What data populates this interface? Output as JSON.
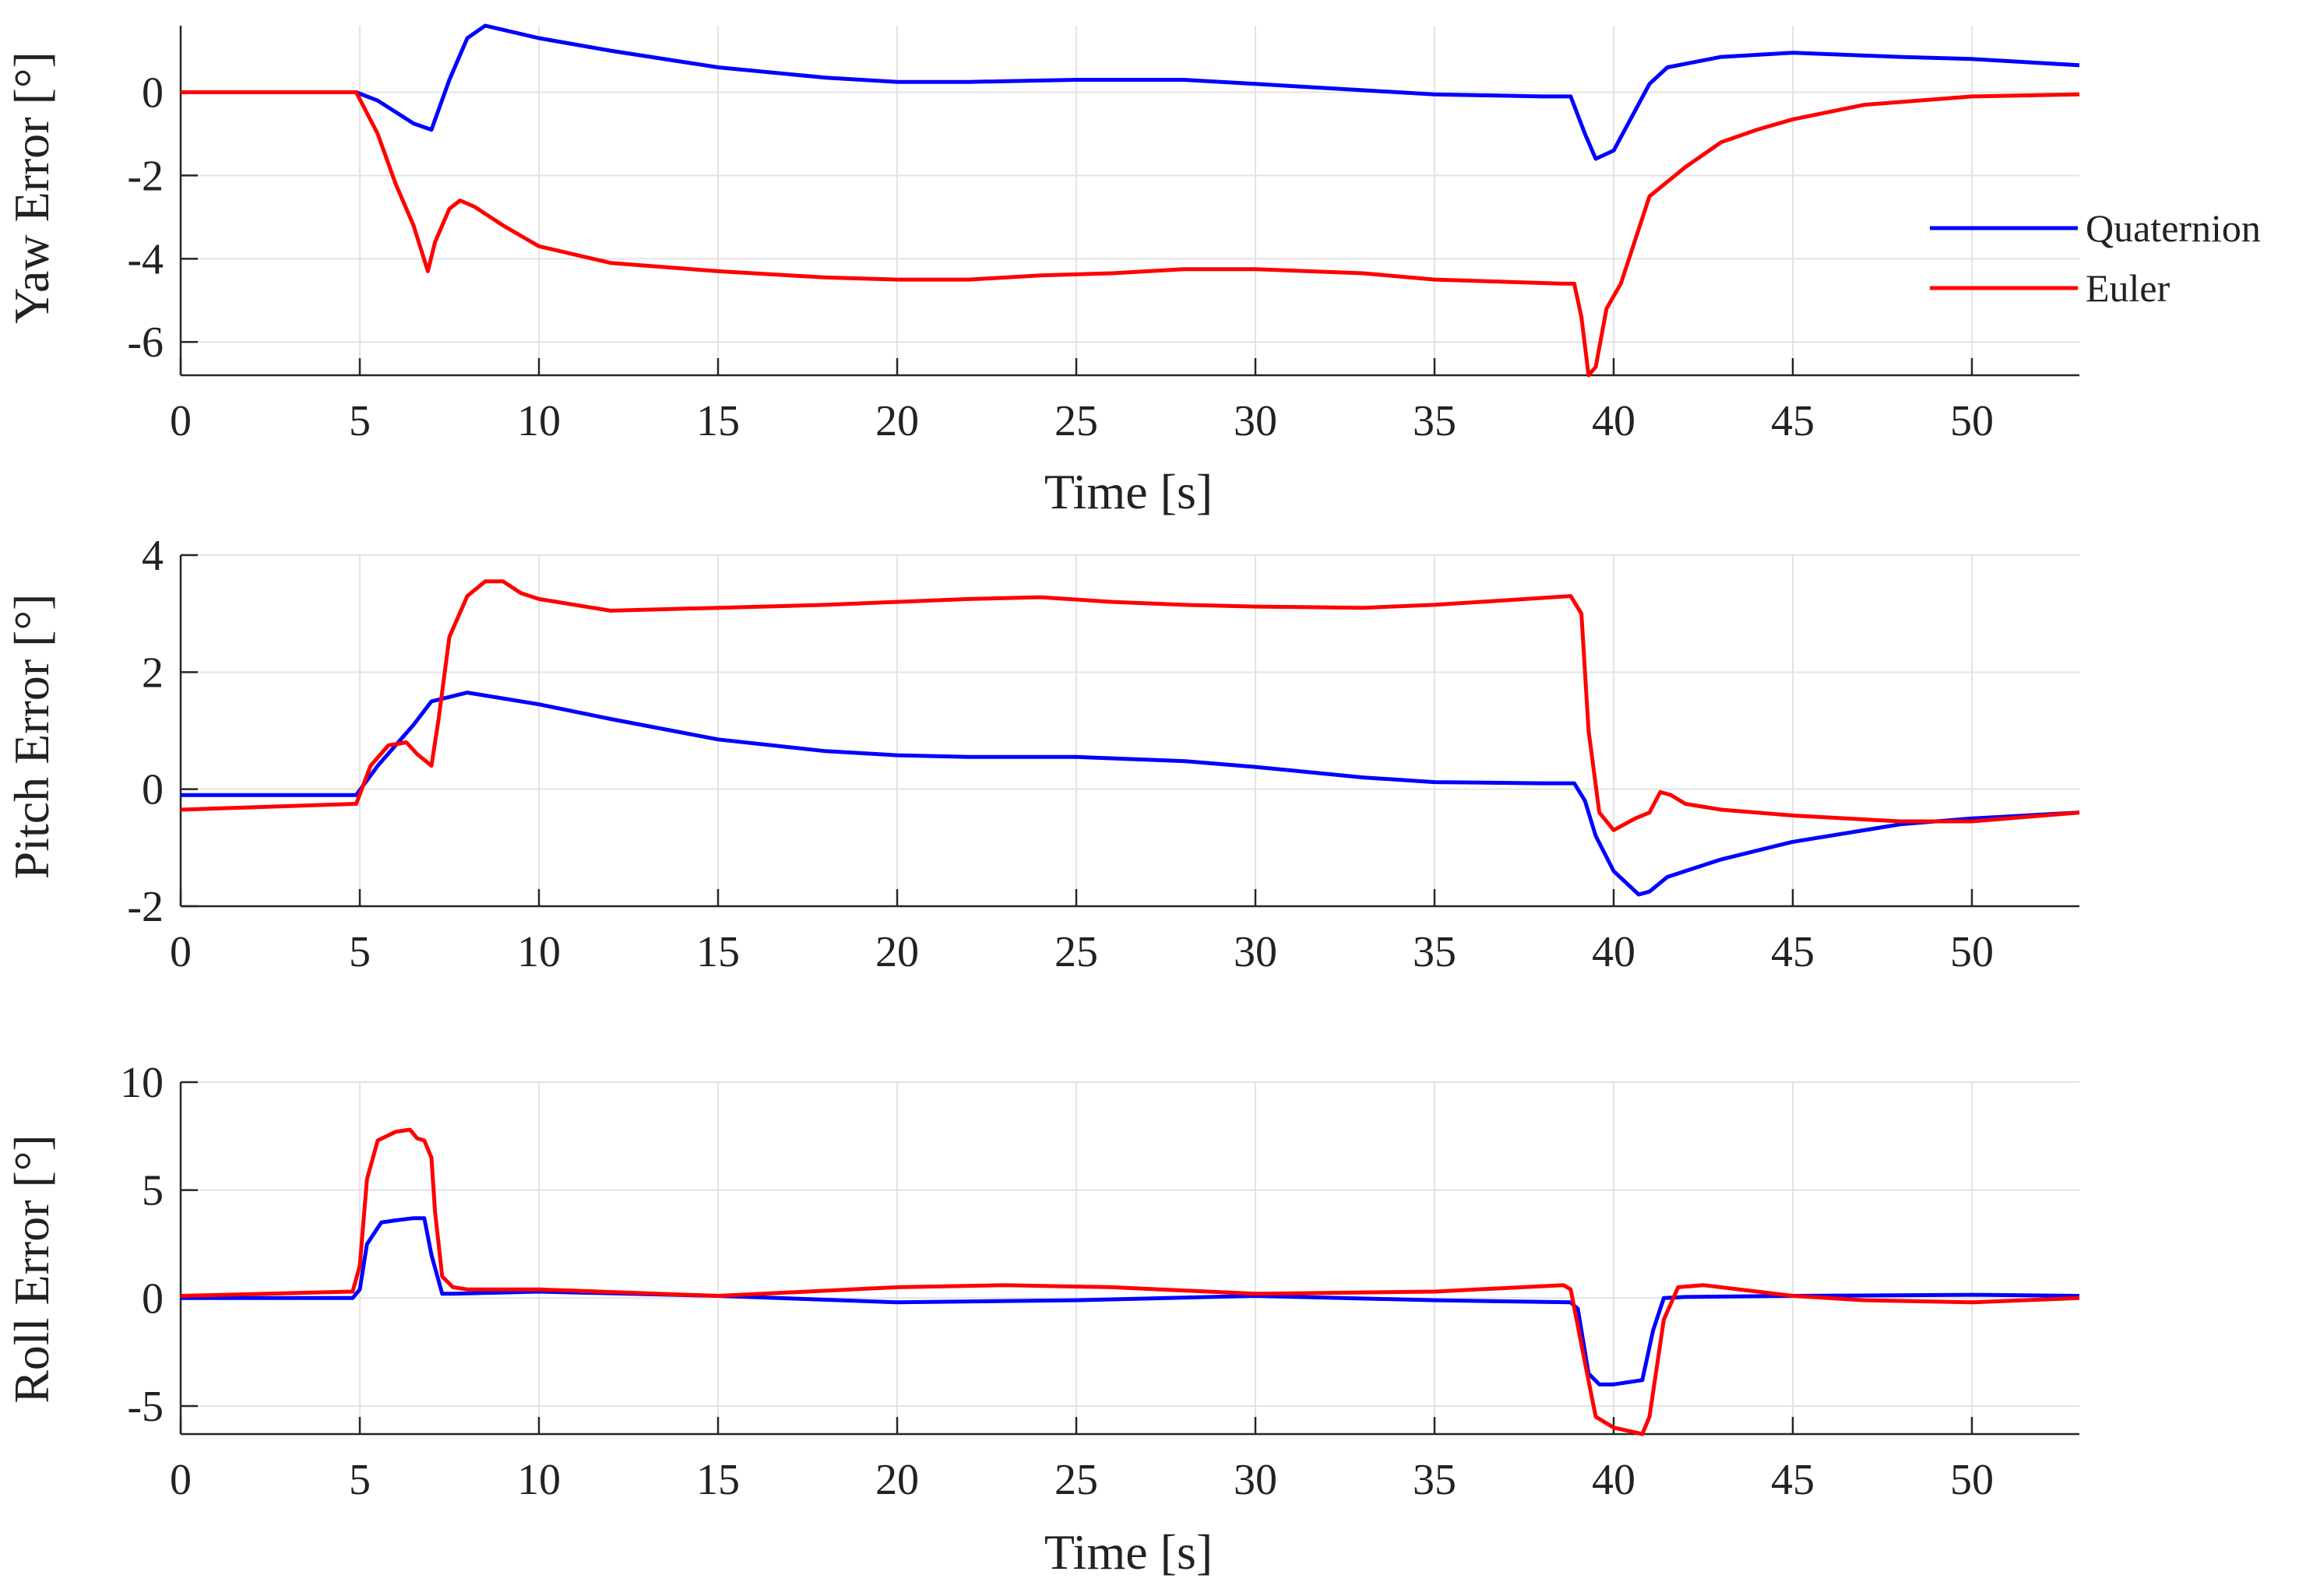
{
  "chart_data": [
    {
      "type": "line",
      "id": "yaw",
      "title": "",
      "ylabel": "Yaw Error [°]",
      "xlabel": "Time [s]",
      "xlim": [
        0,
        53
      ],
      "ylim": [
        -6.8,
        1.6
      ],
      "xticks": [
        0,
        5,
        10,
        15,
        20,
        25,
        30,
        35,
        40,
        45,
        50
      ],
      "yticks": [
        -6,
        -4,
        -2,
        0
      ],
      "grid": true,
      "legend": {
        "position": "right",
        "entries": [
          "Quaternion",
          "Euler"
        ]
      },
      "series": [
        {
          "name": "Quaternion",
          "color": "#0000ff",
          "x": [
            0,
            4.9,
            5.5,
            6.5,
            7,
            7.5,
            8,
            8.5,
            9,
            10,
            12,
            15,
            18,
            20,
            22,
            25,
            28,
            30,
            33,
            35,
            38,
            38.8,
            39.2,
            39.5,
            40,
            40.5,
            41,
            41.5,
            43,
            45,
            48,
            50,
            53
          ],
          "y": [
            0,
            0,
            -0.2,
            -0.75,
            -0.9,
            0.3,
            1.3,
            1.6,
            1.5,
            1.3,
            1.0,
            0.6,
            0.35,
            0.25,
            0.25,
            0.3,
            0.3,
            0.2,
            0.05,
            -0.05,
            -0.1,
            -0.1,
            -1.0,
            -1.6,
            -1.4,
            -0.6,
            0.2,
            0.6,
            0.85,
            0.95,
            0.85,
            0.8,
            0.65
          ]
        },
        {
          "name": "Euler",
          "color": "#ff0000",
          "x": [
            0,
            4.9,
            5.5,
            6,
            6.5,
            6.9,
            7.1,
            7.5,
            7.8,
            8.2,
            9,
            10,
            12,
            15,
            18,
            20,
            22,
            24,
            26,
            28,
            30,
            33,
            35,
            38.6,
            38.9,
            39.1,
            39.3,
            39.5,
            39.8,
            40.2,
            41,
            42,
            43,
            44,
            45,
            47,
            50,
            53
          ],
          "y": [
            0,
            0,
            -1.0,
            -2.2,
            -3.2,
            -4.3,
            -3.6,
            -2.8,
            -2.6,
            -2.75,
            -3.2,
            -3.7,
            -4.1,
            -4.3,
            -4.45,
            -4.5,
            -4.5,
            -4.4,
            -4.35,
            -4.25,
            -4.25,
            -4.35,
            -4.5,
            -4.6,
            -4.6,
            -5.4,
            -6.8,
            -6.6,
            -5.2,
            -4.6,
            -2.5,
            -1.8,
            -1.2,
            -0.9,
            -0.65,
            -0.3,
            -0.1,
            -0.05
          ]
        }
      ]
    },
    {
      "type": "line",
      "id": "pitch",
      "title": "",
      "ylabel": "Pitch Error [°]",
      "xlabel": "",
      "xlim": [
        0,
        53
      ],
      "ylim": [
        -2,
        4
      ],
      "xticks": [
        0,
        5,
        10,
        15,
        20,
        25,
        30,
        35,
        40,
        45,
        50
      ],
      "yticks": [
        -2,
        0,
        2,
        4
      ],
      "grid": true,
      "series": [
        {
          "name": "Quaternion",
          "color": "#0000ff",
          "x": [
            0,
            4.9,
            5.5,
            6.5,
            7,
            8,
            10,
            12,
            15,
            18,
            20,
            22,
            25,
            28,
            30,
            33,
            35,
            38,
            38.9,
            39.2,
            39.5,
            40,
            40.7,
            41,
            41.5,
            43,
            45,
            48,
            50,
            53
          ],
          "y": [
            -0.1,
            -0.1,
            0.4,
            1.1,
            1.5,
            1.65,
            1.45,
            1.2,
            0.85,
            0.65,
            0.58,
            0.55,
            0.55,
            0.48,
            0.38,
            0.2,
            0.12,
            0.1,
            0.1,
            -0.2,
            -0.8,
            -1.4,
            -1.8,
            -1.75,
            -1.5,
            -1.2,
            -0.9,
            -0.6,
            -0.5,
            -0.4
          ]
        },
        {
          "name": "Euler",
          "color": "#ff0000",
          "x": [
            0,
            4.9,
            5.3,
            5.8,
            6.3,
            6.6,
            7,
            7.2,
            7.5,
            8,
            8.5,
            9,
            9.5,
            10,
            12,
            15,
            18,
            20,
            22,
            24,
            26,
            28,
            30,
            33,
            35,
            38.8,
            39.1,
            39.3,
            39.6,
            40,
            40.6,
            41,
            41.3,
            41.6,
            42,
            43,
            45,
            48,
            50,
            53
          ],
          "y": [
            -0.35,
            -0.25,
            0.4,
            0.75,
            0.8,
            0.6,
            0.4,
            1.2,
            2.6,
            3.3,
            3.55,
            3.55,
            3.35,
            3.25,
            3.05,
            3.1,
            3.15,
            3.2,
            3.25,
            3.28,
            3.2,
            3.15,
            3.12,
            3.1,
            3.15,
            3.3,
            3.0,
            1.0,
            -0.4,
            -0.7,
            -0.5,
            -0.4,
            -0.05,
            -0.1,
            -0.25,
            -0.35,
            -0.45,
            -0.55,
            -0.55,
            -0.4
          ]
        }
      ]
    },
    {
      "type": "line",
      "id": "roll",
      "title": "",
      "ylabel": "Roll Error [°]",
      "xlabel": "Time [s]",
      "xlim": [
        0,
        53
      ],
      "ylim": [
        -6.3,
        10
      ],
      "xticks": [
        0,
        5,
        10,
        15,
        20,
        25,
        30,
        35,
        40,
        45,
        50
      ],
      "yticks": [
        -5,
        0,
        5,
        10
      ],
      "grid": true,
      "series": [
        {
          "name": "Quaternion",
          "color": "#0000ff",
          "x": [
            0,
            4.8,
            5,
            5.2,
            5.6,
            6,
            6.5,
            6.8,
            7,
            7.3,
            7.6,
            10,
            15,
            20,
            25,
            30,
            35,
            38.8,
            39,
            39.3,
            39.6,
            40,
            40.8,
            41.1,
            41.4,
            42,
            45,
            50,
            53
          ],
          "y": [
            0,
            0,
            0.4,
            2.5,
            3.5,
            3.6,
            3.7,
            3.7,
            2.0,
            0.2,
            0.2,
            0.3,
            0.1,
            -0.2,
            -0.1,
            0.1,
            -0.1,
            -0.2,
            -0.5,
            -3.5,
            -4.0,
            -4.0,
            -3.8,
            -1.5,
            0,
            0.05,
            0.1,
            0.15,
            0.1
          ]
        },
        {
          "name": "Euler",
          "color": "#ff0000",
          "x": [
            0,
            4.8,
            5,
            5.2,
            5.5,
            6,
            6.4,
            6.6,
            6.8,
            7,
            7.1,
            7.3,
            7.6,
            8,
            10,
            15,
            20,
            23,
            26,
            30,
            35,
            38.6,
            38.8,
            39.2,
            39.5,
            40,
            40.8,
            41,
            41.4,
            41.8,
            42.5,
            45,
            47,
            50,
            53
          ],
          "y": [
            0.1,
            0.3,
            1.5,
            5.5,
            7.3,
            7.7,
            7.8,
            7.4,
            7.3,
            6.5,
            4.0,
            1.0,
            0.5,
            0.4,
            0.4,
            0.1,
            0.5,
            0.6,
            0.5,
            0.2,
            0.3,
            0.6,
            0.4,
            -3.0,
            -5.5,
            -6.0,
            -6.3,
            -5.5,
            -1.0,
            0.5,
            0.6,
            0.1,
            -0.1,
            -0.2,
            0
          ]
        }
      ]
    }
  ]
}
